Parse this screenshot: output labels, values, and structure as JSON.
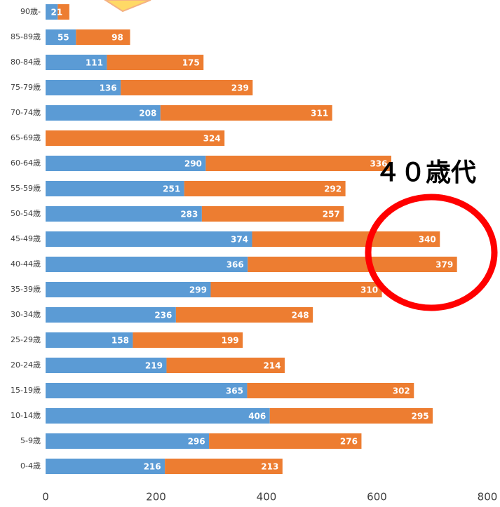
{
  "chart_data": {
    "type": "stacked_barh",
    "annotation": "４０歳代",
    "categories": [
      "90歳-",
      "85-89歳",
      "80-84歳",
      "75-79歳",
      "70-74歳",
      "65-69歳",
      "60-64歳",
      "55-59歳",
      "50-54歳",
      "45-49歳",
      "40-44歳",
      "35-39歳",
      "30-34歳",
      "25-29歳",
      "20-24歳",
      "15-19歳",
      "10-14歳",
      "5-9歳",
      "0-4歳"
    ],
    "series": [
      {
        "color": "#5b9bd5",
        "values": [
          22,
          55,
          111,
          136,
          208,
          null,
          290,
          251,
          283,
          374,
          366,
          299,
          236,
          158,
          219,
          365,
          406,
          296,
          216
        ],
        "value_labels": [
          null,
          "55",
          "111",
          "136",
          "208",
          null,
          "290",
          "251",
          "283",
          "374",
          "366",
          "299",
          "236",
          "158",
          "219",
          "365",
          "406",
          "296",
          "216"
        ]
      },
      {
        "color": "#ed7d31",
        "values": [
          21,
          98,
          175,
          239,
          311,
          324,
          336,
          292,
          257,
          340,
          379,
          310,
          248,
          199,
          214,
          302,
          295,
          276,
          213
        ]
      }
    ],
    "xlim": [
      0,
      800
    ],
    "xticks": [
      0,
      200,
      400,
      600,
      800
    ]
  }
}
